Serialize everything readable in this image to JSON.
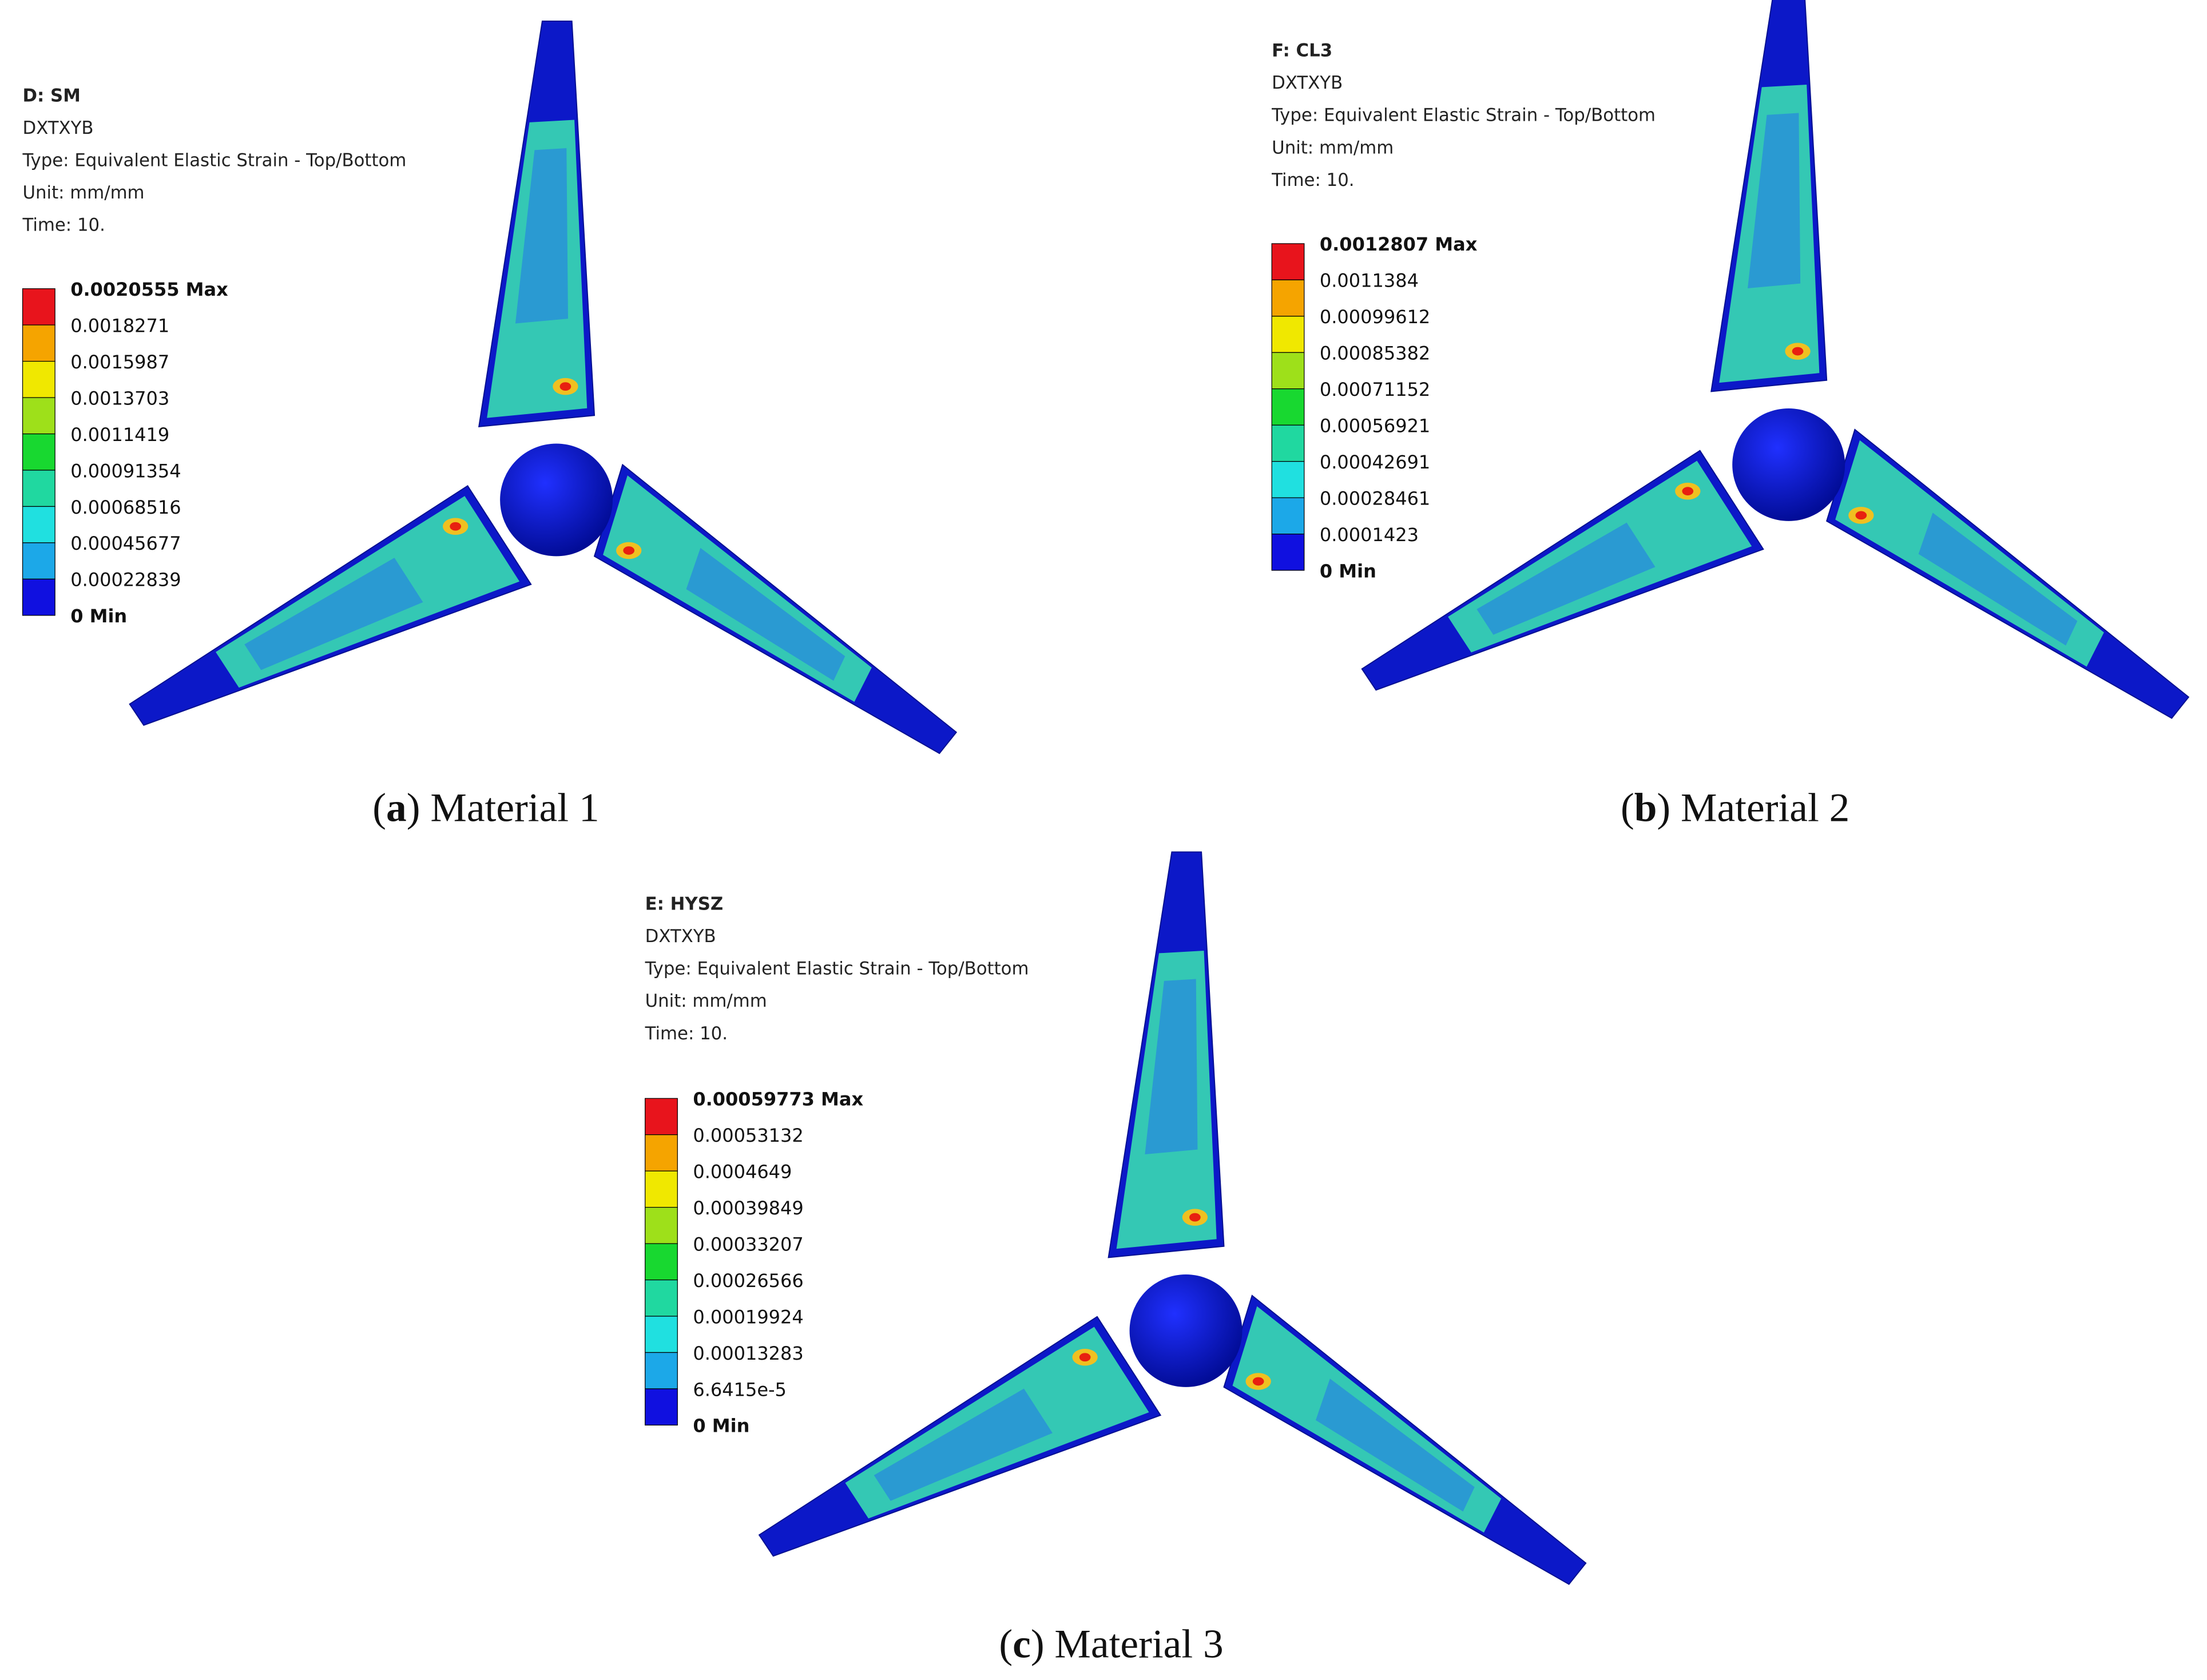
{
  "panels": [
    {
      "header": [
        "D: SM",
        "DXTXYB",
        "Type: Equivalent Elastic Strain - Top/Bottom",
        "Unit: mm/mm",
        "Time: 10."
      ],
      "legend": [
        "0.0020555 Max",
        "0.0018271",
        "0.0015987",
        "0.0013703",
        "0.0011419",
        "0.00091354",
        "0.00068516",
        "0.00045677",
        "0.00022839",
        "0 Min"
      ],
      "caption": [
        "(",
        "a",
        ") Material 1"
      ]
    },
    {
      "header": [
        "F: CL3",
        "DXTXYB",
        "Type: Equivalent Elastic Strain - Top/Bottom",
        "Unit: mm/mm",
        "Time: 10."
      ],
      "legend": [
        "0.0012807 Max",
        "0.0011384",
        "0.00099612",
        "0.00085382",
        "0.00071152",
        "0.00056921",
        "0.00042691",
        "0.00028461",
        "0.0001423",
        "0 Min"
      ],
      "caption": [
        "(",
        "b",
        ") Material 2"
      ]
    },
    {
      "header": [
        "E: HYSZ",
        "DXTXYB",
        "Type: Equivalent Elastic Strain - Top/Bottom",
        "Unit: mm/mm",
        "Time: 10."
      ],
      "legend": [
        "0.00059773 Max",
        "0.00053132",
        "0.0004649",
        "0.00039849",
        "0.00033207",
        "0.00026566",
        "0.00019924",
        "0.00013283",
        "6.6415e-5",
        "0 Min"
      ],
      "caption": [
        "(",
        "c",
        ") Material 3"
      ]
    }
  ]
}
